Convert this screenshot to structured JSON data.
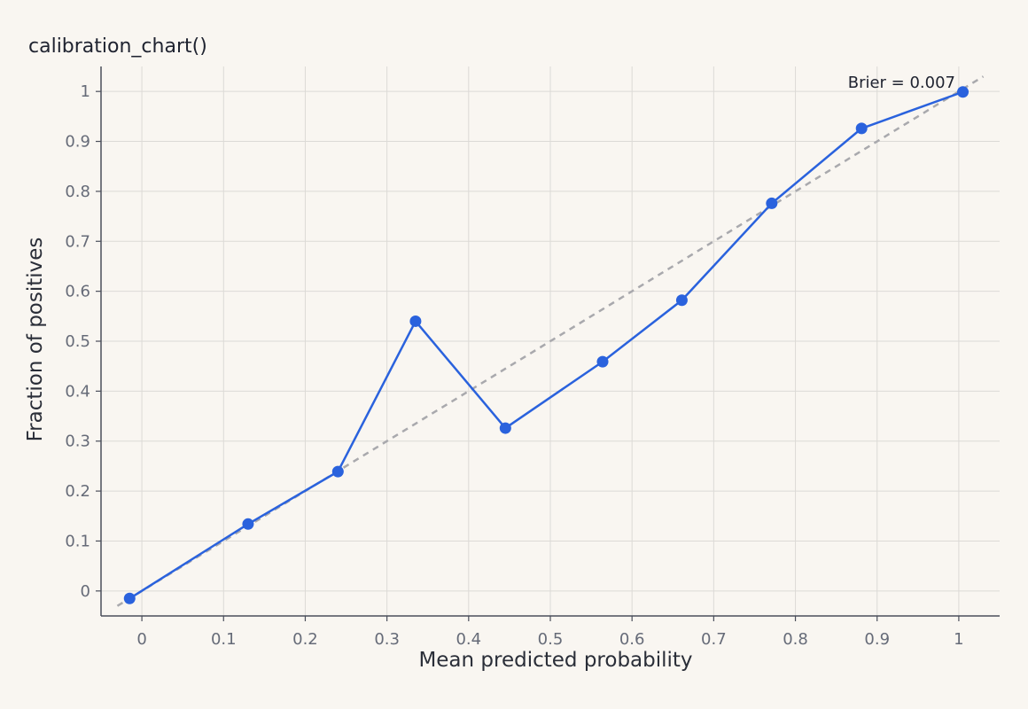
{
  "chart_data": {
    "type": "line",
    "title": "calibration_chart()",
    "xlabel": "Mean predicted probability",
    "ylabel": "Fraction of positives",
    "xlim": [
      -0.05,
      1.05
    ],
    "ylim": [
      -0.05,
      1.05
    ],
    "x_ticks": [
      0,
      0.1,
      0.2,
      0.3,
      0.4,
      0.5,
      0.6,
      0.7,
      0.8,
      0.9,
      1
    ],
    "x_tick_labels": [
      "0",
      "0.1",
      "0.2",
      "0.3",
      "0.4",
      "0.5",
      "0.6",
      "0.7",
      "0.8",
      "0.9",
      "1"
    ],
    "y_ticks": [
      0,
      0.1,
      0.2,
      0.3,
      0.4,
      0.5,
      0.6,
      0.7,
      0.8,
      0.9,
      1
    ],
    "y_tick_labels": [
      "0",
      "0.1",
      "0.2",
      "0.3",
      "0.4",
      "0.5",
      "0.6",
      "0.7",
      "0.8",
      "0.9",
      "1"
    ],
    "grid": true,
    "series": [
      {
        "color": "#2a62dd",
        "x": [
          -0.015,
          0.13,
          0.24,
          0.335,
          0.445,
          0.564,
          0.661,
          0.771,
          0.881,
          1.005
        ],
        "y": [
          -0.015,
          0.134,
          0.239,
          0.54,
          0.326,
          0.459,
          0.582,
          0.776,
          0.926,
          0.999
        ]
      }
    ],
    "reference_line": {
      "style": "dashed",
      "color": "#a9a9ad",
      "x": [
        -0.03,
        1.03
      ],
      "y": [
        -0.03,
        1.03
      ]
    },
    "annotation": {
      "text": "Brier = 0.007"
    }
  }
}
